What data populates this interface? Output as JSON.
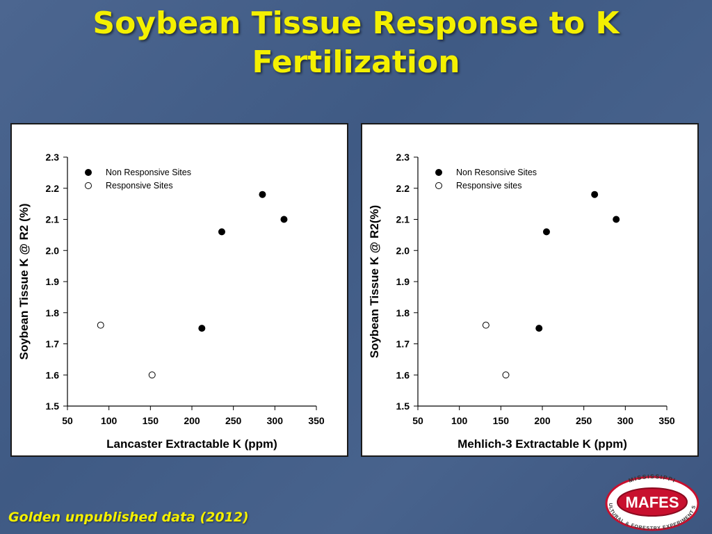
{
  "slide": {
    "title_line1": "Soybean Tissue Response to K",
    "title_line2": "Fertilization",
    "footer": "Golden unpublished data (2012)",
    "logo": {
      "name": "MAFES",
      "top_text": "MISSISSIPPI",
      "bottom_text": "AGRICULTURAL & FORESTRY EXPERIMENT STATION",
      "color": "#c8102e"
    },
    "title_color": "#f4f000"
  },
  "chart_data": [
    {
      "type": "scatter",
      "xlabel": "Lancaster Extractable K (ppm)",
      "ylabel": "Soybean Tissue K @ R2 (%)",
      "xlim": [
        50,
        350
      ],
      "ylim": [
        1.5,
        2.3
      ],
      "x_ticks": [
        "50",
        "100",
        "150",
        "200",
        "250",
        "300",
        "350"
      ],
      "y_ticks": [
        "1.5",
        "1.6",
        "1.7",
        "1.8",
        "1.9",
        "2.0",
        "2.1",
        "2.2",
        "2.3"
      ],
      "grid": false,
      "legend_position": "top-left",
      "series": [
        {
          "name": "Non Responsive Sites",
          "marker": "filled-circle",
          "x": [
            212,
            236,
            285,
            311
          ],
          "y": [
            1.75,
            2.06,
            2.18,
            2.1
          ]
        },
        {
          "name": "Responsive Sites",
          "marker": "open-circle",
          "x": [
            90,
            152
          ],
          "y": [
            1.76,
            1.6
          ]
        }
      ]
    },
    {
      "type": "scatter",
      "xlabel": "Mehlich-3 Extractable K (ppm)",
      "ylabel": "Soybean Tissue K @ R2(%)",
      "xlim": [
        50,
        350
      ],
      "ylim": [
        1.5,
        2.3
      ],
      "x_ticks": [
        "50",
        "100",
        "150",
        "200",
        "250",
        "300",
        "350"
      ],
      "y_ticks": [
        "1.5",
        "1.6",
        "1.7",
        "1.8",
        "1.9",
        "2.0",
        "2.1",
        "2.2",
        "2.3"
      ],
      "grid": false,
      "legend_position": "top-left",
      "series": [
        {
          "name": "Non Resonsive Sites",
          "marker": "filled-circle",
          "x": [
            196,
            205,
            263,
            289
          ],
          "y": [
            1.75,
            2.06,
            2.18,
            2.1
          ]
        },
        {
          "name": "Responsive sites",
          "marker": "open-circle",
          "x": [
            132,
            156
          ],
          "y": [
            1.76,
            1.6
          ]
        }
      ]
    }
  ]
}
